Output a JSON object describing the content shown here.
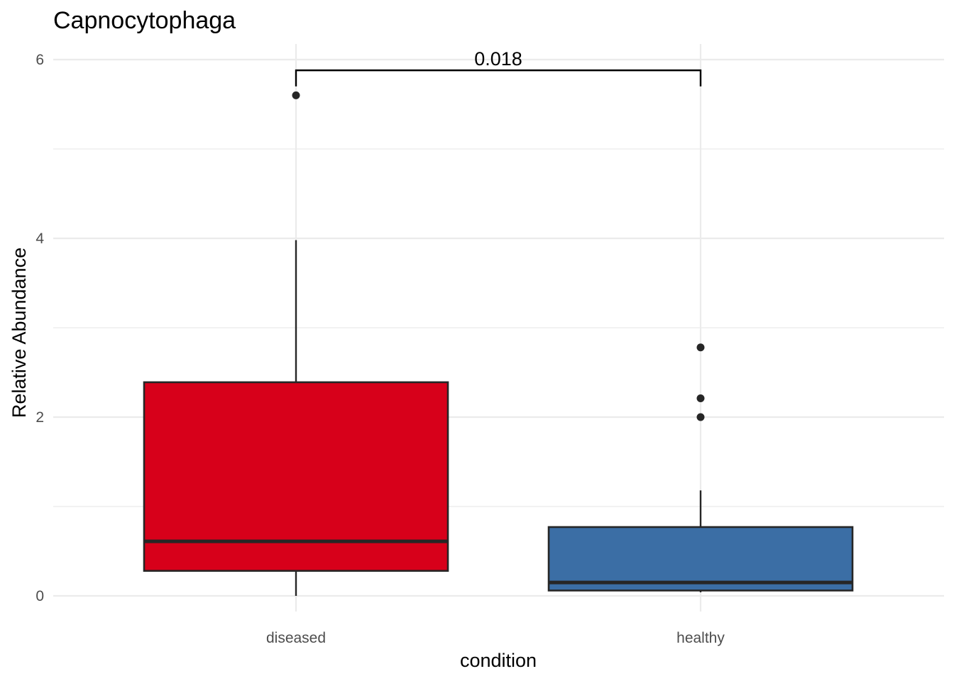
{
  "chart_data": {
    "type": "box",
    "title": "Capnocytophaga",
    "xlabel": "condition",
    "ylabel": "Relative Abundance",
    "categories": [
      "diseased",
      "healthy"
    ],
    "ylim": [
      -0.2,
      6.18
    ],
    "y_ticks": [
      0,
      2,
      4,
      6
    ],
    "y_tick_labels": [
      "0",
      "2",
      "4",
      "6"
    ],
    "grid": true,
    "series": [
      {
        "category": "diseased",
        "color": "#d7001a",
        "whisker_low": 0.0,
        "q1": 0.28,
        "median": 0.61,
        "q3": 2.39,
        "whisker_high": 3.98,
        "outliers": [
          5.6
        ]
      },
      {
        "category": "healthy",
        "color": "#3b6ea5",
        "whisker_low": 0.04,
        "q1": 0.06,
        "median": 0.15,
        "q3": 0.77,
        "whisker_high": 1.18,
        "outliers": [
          2.0,
          2.21,
          2.78
        ]
      }
    ],
    "annotation": {
      "label": "0.018",
      "groups": [
        "diseased",
        "healthy"
      ],
      "y": 5.88,
      "tip_y": 5.7
    },
    "line_color": "#262626",
    "bracket_color": "#000000"
  }
}
